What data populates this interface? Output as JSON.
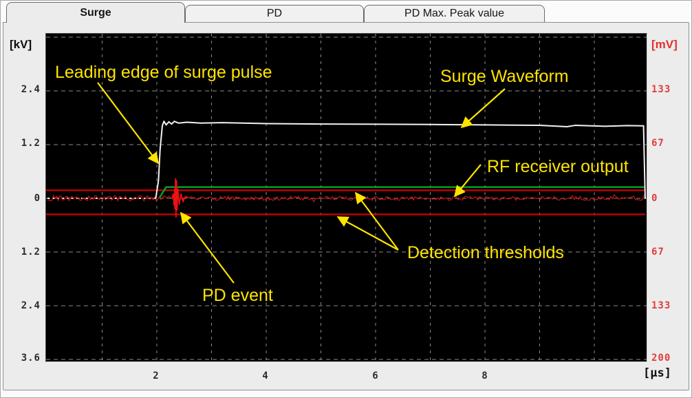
{
  "tabs": [
    {
      "label": "Surge",
      "active": true
    },
    {
      "label": "PD",
      "active": false
    },
    {
      "label": "PD Max. Peak value",
      "active": false
    }
  ],
  "axes": {
    "left": {
      "unit": "[kV]",
      "ticks": [
        "2.4",
        "1.2",
        "0",
        "1.2",
        "2.4",
        "3.6"
      ]
    },
    "right": {
      "unit": "[mV]",
      "ticks": [
        "133",
        "67",
        "0",
        "67",
        "133",
        "200"
      ]
    },
    "bottom": {
      "unit": "[µs]",
      "ticks": [
        "2",
        "4",
        "6",
        "8"
      ]
    }
  },
  "annotations": {
    "leading_edge": "Leading edge of surge pulse",
    "surge_waveform": "Surge Waveform",
    "rf_output": "RF receiver output",
    "thresholds": "Detection thresholds",
    "pd_event": "PD event"
  },
  "colors": {
    "annotation_yellow": "#ffe400",
    "surge_trace": "#f2f2f2",
    "rf_noise": "#dd1111",
    "pd_burst": "#ee1111",
    "threshold_red": "#c40000",
    "green_line": "#00a822",
    "grid": "#8b8b8b",
    "plot_bg": "#000000"
  },
  "chart_data": {
    "type": "line",
    "title": "Surge test waveform with PD detection",
    "xlabel": "[µs]",
    "ylabel_left": "[kV]",
    "ylabel_right": "[mV]",
    "x_range_us": [
      0,
      10.93
    ],
    "ylim_left_kV": [
      -3.66,
      3.66
    ],
    "ylim_right_mV": [
      -203,
      203
    ],
    "x_ticks_us": [
      2,
      4,
      6,
      8
    ],
    "left_ticks_kV": [
      2.4,
      1.2,
      0,
      1.2,
      2.4,
      3.6
    ],
    "right_ticks_mV": [
      133,
      67,
      0,
      67,
      133,
      200
    ],
    "grid": "dashed, 1 µs vertical / 1.2 kV horizontal",
    "legend_position": "none (yellow callout arrows instead)",
    "series": [
      {
        "name": "Surge Waveform",
        "color": "#f2f2f2",
        "unit": "kV",
        "keypoints_t_kV": [
          [
            0,
            0
          ],
          [
            1.98,
            0
          ],
          [
            2.03,
            0.4
          ],
          [
            2.06,
            1.1
          ],
          [
            2.1,
            1.62
          ],
          [
            2.13,
            1.72
          ],
          [
            2.17,
            1.64
          ],
          [
            2.22,
            1.71
          ],
          [
            2.27,
            1.66
          ],
          [
            2.32,
            1.72
          ],
          [
            2.4,
            1.68
          ],
          [
            2.55,
            1.7
          ],
          [
            2.8,
            1.68
          ],
          [
            3.2,
            1.69
          ],
          [
            4.0,
            1.67
          ],
          [
            5.0,
            1.66
          ],
          [
            6.0,
            1.655
          ],
          [
            7.0,
            1.65
          ],
          [
            8.0,
            1.64
          ],
          [
            9.0,
            1.63
          ],
          [
            9.5,
            1.6
          ],
          [
            9.65,
            1.63
          ],
          [
            10.2,
            1.61
          ],
          [
            10.6,
            1.625
          ],
          [
            10.9,
            1.62
          ],
          [
            10.93,
            0
          ]
        ]
      },
      {
        "name": "RF receiver output",
        "color": "#dd1111",
        "unit": "mV",
        "baseline_mV": 0,
        "noise_amplitude_mV": 2.6,
        "pre_surge_noise_amplitude_mV": 3.4
      },
      {
        "name": "PD event burst",
        "color": "#ee1111",
        "unit": "mV",
        "keypoints_t_mV": [
          [
            2.28,
            0
          ],
          [
            2.3,
            6
          ],
          [
            2.315,
            -9
          ],
          [
            2.325,
            12
          ],
          [
            2.33,
            -14
          ],
          [
            2.34,
            25
          ],
          [
            2.35,
            -24
          ],
          [
            2.36,
            23
          ],
          [
            2.37,
            -15
          ],
          [
            2.385,
            12
          ],
          [
            2.41,
            -8
          ],
          [
            2.44,
            6
          ],
          [
            2.48,
            -4
          ],
          [
            2.52,
            2
          ],
          [
            2.56,
            0
          ]
        ]
      },
      {
        "name": "RF gate level (green line)",
        "color": "#00a822",
        "unit": "mV",
        "keypoints_t_mV": [
          [
            2.05,
            1
          ],
          [
            2.17,
            14
          ],
          [
            10.93,
            14
          ]
        ]
      },
      {
        "name": "Upper detection threshold",
        "color": "#c40000",
        "unit": "mV",
        "value_mV": 10
      },
      {
        "name": "Lower detection threshold",
        "color": "#c40000",
        "unit": "mV",
        "value_mV": -20
      }
    ]
  }
}
